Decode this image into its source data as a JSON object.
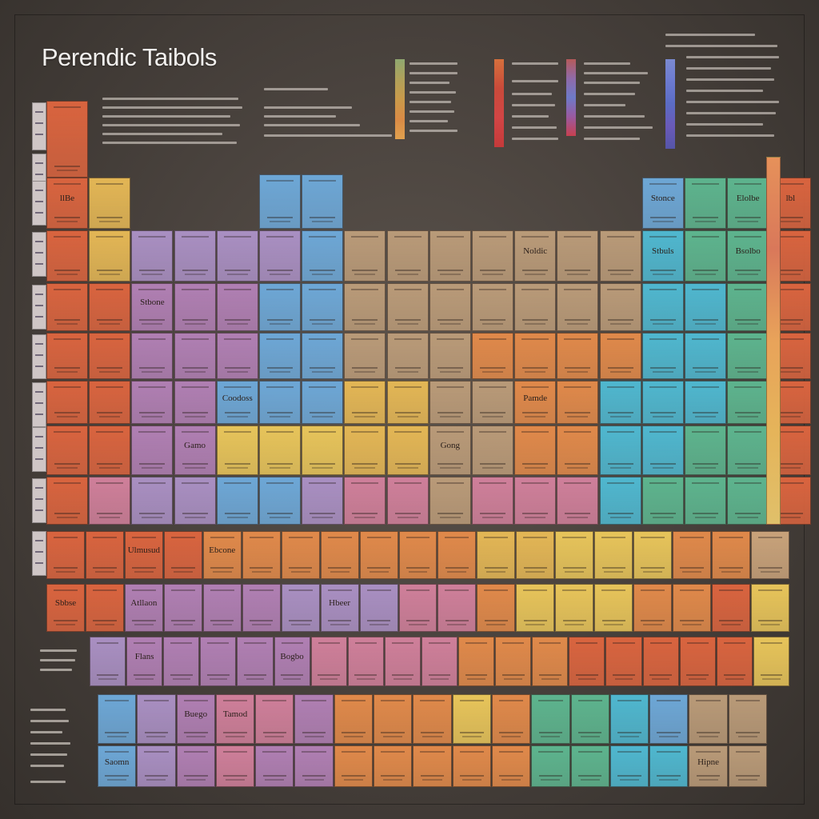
{
  "title": "Perendic Taibols",
  "colors": {
    "red": "#d9643f",
    "orange": "#e0894a",
    "purple": "#a98fc2",
    "violet": "#b07fb3",
    "blue": "#6da7d6",
    "cyan": "#4fb7cf",
    "green": "#5db48e",
    "tan": "#b99a78",
    "yellow": "#e3b655",
    "gold": "#e7c45a",
    "pink": "#cf7f9a",
    "sand": "#c8a27a"
  },
  "grid_rows": [
    [
      {
        "c": "red",
        "t": "",
        "col": 0,
        "row": 0
      }
    ],
    [
      {
        "c": "red",
        "t": "llBe",
        "col": 0
      },
      {
        "c": "yellow",
        "t": "",
        "col": 1
      },
      {
        "c": "blue",
        "t": "",
        "col": 5
      },
      {
        "c": "blue",
        "t": "",
        "col": 6
      },
      {
        "c": "blue",
        "t": "Stonce",
        "col": 14
      },
      {
        "c": "green",
        "t": "",
        "col": 15
      },
      {
        "c": "green",
        "t": "Elolbe",
        "col": 16
      },
      {
        "c": "red",
        "t": "lbl",
        "col": 17
      }
    ],
    [
      {
        "c": "red",
        "t": "",
        "col": 0
      },
      {
        "c": "yellow",
        "t": "",
        "col": 1
      },
      {
        "c": "purple",
        "t": "",
        "col": 2
      },
      {
        "c": "purple",
        "t": "",
        "col": 3
      },
      {
        "c": "purple",
        "t": "",
        "col": 4
      },
      {
        "c": "purple",
        "t": "",
        "col": 5
      },
      {
        "c": "blue",
        "t": "",
        "col": 6
      },
      {
        "c": "tan",
        "t": "",
        "col": 7
      },
      {
        "c": "tan",
        "t": "",
        "col": 8
      },
      {
        "c": "tan",
        "t": "",
        "col": 9
      },
      {
        "c": "tan",
        "t": "",
        "col": 10
      },
      {
        "c": "tan",
        "t": "Noldic",
        "col": 11
      },
      {
        "c": "tan",
        "t": "",
        "col": 12
      },
      {
        "c": "tan",
        "t": "",
        "col": 13
      },
      {
        "c": "cyan",
        "t": "Stbuls",
        "col": 14
      },
      {
        "c": "green",
        "t": "",
        "col": 15
      },
      {
        "c": "green",
        "t": "Bsolbo",
        "col": 16
      },
      {
        "c": "red",
        "t": "",
        "col": 17
      }
    ],
    [
      {
        "c": "red",
        "t": "",
        "col": 0
      },
      {
        "c": "red",
        "t": "",
        "col": 1
      },
      {
        "c": "violet",
        "t": "Stbone",
        "col": 2
      },
      {
        "c": "violet",
        "t": "",
        "col": 3
      },
      {
        "c": "violet",
        "t": "",
        "col": 4
      },
      {
        "c": "blue",
        "t": "",
        "col": 5
      },
      {
        "c": "blue",
        "t": "",
        "col": 6
      },
      {
        "c": "tan",
        "t": "",
        "col": 7
      },
      {
        "c": "tan",
        "t": "",
        "col": 8
      },
      {
        "c": "tan",
        "t": "",
        "col": 9
      },
      {
        "c": "tan",
        "t": "",
        "col": 10
      },
      {
        "c": "tan",
        "t": "",
        "col": 11
      },
      {
        "c": "tan",
        "t": "",
        "col": 12
      },
      {
        "c": "tan",
        "t": "",
        "col": 13
      },
      {
        "c": "cyan",
        "t": "",
        "col": 14
      },
      {
        "c": "cyan",
        "t": "",
        "col": 15
      },
      {
        "c": "green",
        "t": "",
        "col": 16
      },
      {
        "c": "red",
        "t": "",
        "col": 17
      }
    ],
    [
      {
        "c": "red",
        "t": "",
        "col": 0
      },
      {
        "c": "red",
        "t": "",
        "col": 1
      },
      {
        "c": "violet",
        "t": "",
        "col": 2
      },
      {
        "c": "violet",
        "t": "",
        "col": 3
      },
      {
        "c": "violet",
        "t": "",
        "col": 4
      },
      {
        "c": "blue",
        "t": "",
        "col": 5
      },
      {
        "c": "blue",
        "t": "",
        "col": 6
      },
      {
        "c": "tan",
        "t": "",
        "col": 7
      },
      {
        "c": "tan",
        "t": "",
        "col": 8
      },
      {
        "c": "tan",
        "t": "",
        "col": 9
      },
      {
        "c": "orange",
        "t": "",
        "col": 10
      },
      {
        "c": "orange",
        "t": "",
        "col": 11
      },
      {
        "c": "orange",
        "t": "",
        "col": 12
      },
      {
        "c": "orange",
        "t": "",
        "col": 13
      },
      {
        "c": "cyan",
        "t": "",
        "col": 14
      },
      {
        "c": "cyan",
        "t": "",
        "col": 15
      },
      {
        "c": "green",
        "t": "",
        "col": 16
      },
      {
        "c": "red",
        "t": "",
        "col": 17
      }
    ],
    [
      {
        "c": "red",
        "t": "",
        "col": 0
      },
      {
        "c": "red",
        "t": "",
        "col": 1
      },
      {
        "c": "violet",
        "t": "",
        "col": 2
      },
      {
        "c": "violet",
        "t": "",
        "col": 3
      },
      {
        "c": "blue",
        "t": "Coodoss",
        "col": 4
      },
      {
        "c": "blue",
        "t": "",
        "col": 5
      },
      {
        "c": "blue",
        "t": "",
        "col": 6
      },
      {
        "c": "yellow",
        "t": "",
        "col": 7
      },
      {
        "c": "yellow",
        "t": "",
        "col": 8
      },
      {
        "c": "tan",
        "t": "",
        "col": 9
      },
      {
        "c": "tan",
        "t": "",
        "col": 10
      },
      {
        "c": "orange",
        "t": "Pamde",
        "col": 11
      },
      {
        "c": "orange",
        "t": "",
        "col": 12
      },
      {
        "c": "cyan",
        "t": "",
        "col": 13
      },
      {
        "c": "cyan",
        "t": "",
        "col": 14
      },
      {
        "c": "cyan",
        "t": "",
        "col": 15
      },
      {
        "c": "green",
        "t": "",
        "col": 16
      },
      {
        "c": "red",
        "t": "",
        "col": 17
      }
    ],
    [
      {
        "c": "red",
        "t": "",
        "col": 0
      },
      {
        "c": "red",
        "t": "",
        "col": 1
      },
      {
        "c": "violet",
        "t": "",
        "col": 2
      },
      {
        "c": "violet",
        "t": "Gamo",
        "col": 3
      },
      {
        "c": "gold",
        "t": "",
        "col": 4
      },
      {
        "c": "gold",
        "t": "",
        "col": 5
      },
      {
        "c": "gold",
        "t": "",
        "col": 6
      },
      {
        "c": "yellow",
        "t": "",
        "col": 7
      },
      {
        "c": "yellow",
        "t": "",
        "col": 8
      },
      {
        "c": "tan",
        "t": "Gong",
        "col": 9
      },
      {
        "c": "tan",
        "t": "",
        "col": 10
      },
      {
        "c": "orange",
        "t": "",
        "col": 11
      },
      {
        "c": "orange",
        "t": "",
        "col": 12
      },
      {
        "c": "cyan",
        "t": "",
        "col": 13
      },
      {
        "c": "cyan",
        "t": "",
        "col": 14
      },
      {
        "c": "green",
        "t": "",
        "col": 15
      },
      {
        "c": "green",
        "t": "",
        "col": 16
      },
      {
        "c": "red",
        "t": "",
        "col": 17
      }
    ],
    [
      {
        "c": "red",
        "t": "",
        "col": 0
      },
      {
        "c": "pink",
        "t": "",
        "col": 1
      },
      {
        "c": "purple",
        "t": "",
        "col": 2
      },
      {
        "c": "purple",
        "t": "",
        "col": 3
      },
      {
        "c": "blue",
        "t": "",
        "col": 4
      },
      {
        "c": "blue",
        "t": "",
        "col": 5
      },
      {
        "c": "purple",
        "t": "",
        "col": 6
      },
      {
        "c": "pink",
        "t": "",
        "col": 7
      },
      {
        "c": "pink",
        "t": "",
        "col": 8
      },
      {
        "c": "tan",
        "t": "",
        "col": 9
      },
      {
        "c": "pink",
        "t": "",
        "col": 10
      },
      {
        "c": "pink",
        "t": "",
        "col": 11
      },
      {
        "c": "pink",
        "t": "",
        "col": 12
      },
      {
        "c": "cyan",
        "t": "",
        "col": 13
      },
      {
        "c": "green",
        "t": "",
        "col": 14
      },
      {
        "c": "green",
        "t": "",
        "col": 15
      },
      {
        "c": "green",
        "t": "",
        "col": 16
      },
      {
        "c": "red",
        "t": "",
        "col": 17
      }
    ]
  ],
  "band_rows": [
    {
      "colors": [
        "red",
        "red",
        "red",
        "red",
        "orange",
        "orange",
        "orange",
        "orange",
        "orange",
        "orange",
        "orange",
        "yellow",
        "yellow",
        "gold",
        "gold",
        "gold",
        "orange",
        "orange",
        "sand"
      ],
      "labels": [
        "",
        "",
        "Ulmusud",
        "",
        "Ebcone",
        "",
        "",
        "",
        "",
        "",
        "",
        "",
        "",
        "",
        "",
        "",
        "",
        "",
        ""
      ]
    },
    {
      "colors": [
        "red",
        "red",
        "violet",
        "violet",
        "violet",
        "violet",
        "purple",
        "purple",
        "purple",
        "pink",
        "pink",
        "orange",
        "gold",
        "gold",
        "gold",
        "orange",
        "orange",
        "red",
        "gold"
      ],
      "labels": [
        "Sbbse",
        "",
        "Atllaon",
        "",
        "",
        "",
        "",
        "Hbeer",
        "",
        "",
        "",
        "",
        "",
        "",
        "",
        "",
        "",
        "",
        ""
      ]
    },
    {
      "colors": [
        "purple",
        "violet",
        "violet",
        "violet",
        "violet",
        "violet",
        "pink",
        "pink",
        "pink",
        "pink",
        "orange",
        "orange",
        "orange",
        "red",
        "red",
        "red",
        "red",
        "red",
        "gold"
      ],
      "labels": [
        "",
        "Flans",
        "",
        "",
        "",
        "Bogbo",
        "",
        "",
        "",
        "",
        "",
        "",
        "",
        "",
        "",
        "",
        "",
        "",
        ""
      ]
    },
    {
      "colors": [
        "blue",
        "purple",
        "violet",
        "pink",
        "pink",
        "violet",
        "orange",
        "orange",
        "orange",
        "gold",
        "orange",
        "green",
        "green",
        "cyan",
        "blue",
        "tan",
        "tan"
      ],
      "labels": [
        "",
        "",
        "Buego",
        "Tamod",
        "",
        "",
        "",
        "",
        "",
        "",
        "",
        "",
        "",
        "",
        "",
        "",
        ""
      ]
    },
    {
      "colors": [
        "blue",
        "purple",
        "violet",
        "pink",
        "violet",
        "violet",
        "orange",
        "orange",
        "orange",
        "orange",
        "orange",
        "green",
        "green",
        "cyan",
        "cyan",
        "tan",
        "tan"
      ],
      "labels": [
        "Saomn",
        "",
        "",
        "",
        "",
        "",
        "",
        "",
        "",
        "",
        "",
        "",
        "",
        "",
        "",
        "Hipne",
        ""
      ]
    }
  ]
}
